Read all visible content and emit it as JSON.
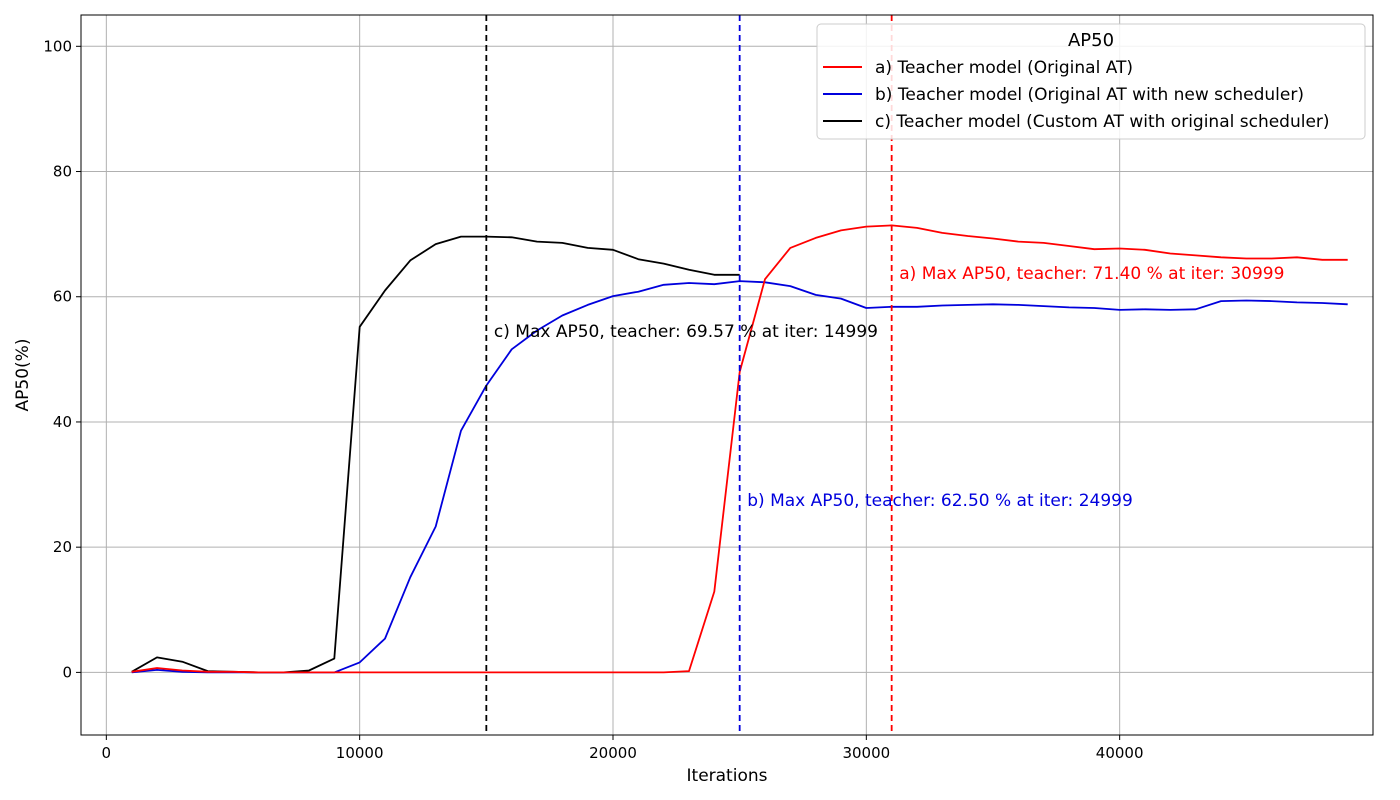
{
  "chart_data": {
    "type": "line",
    "xlabel": "Iterations",
    "ylabel": "AP50(%)",
    "xlim": [
      -1000,
      50000
    ],
    "ylim": [
      -10,
      105
    ],
    "xticks": [
      0,
      10000,
      20000,
      30000,
      40000
    ],
    "yticks": [
      0,
      20,
      40,
      60,
      80,
      100
    ],
    "grid": true,
    "legend": {
      "title": "AP50",
      "placement": "top-right"
    },
    "series": [
      {
        "name": "a) Teacher model (Original AT)",
        "color": "#ff0000",
        "x": [
          1000,
          2000,
          3000,
          4000,
          5000,
          6000,
          7000,
          8000,
          9000,
          10000,
          11000,
          12000,
          13000,
          14000,
          15000,
          16000,
          17000,
          18000,
          19000,
          20000,
          21000,
          22000,
          23000,
          24000,
          25000,
          26000,
          27000,
          28000,
          29000,
          30000,
          31000,
          32000,
          33000,
          34000,
          35000,
          36000,
          37000,
          38000,
          39000,
          40000,
          41000,
          42000,
          43000,
          44000,
          45000,
          46000,
          47000,
          48000,
          49000
        ],
        "y": [
          0.1,
          0.7,
          0.3,
          0.1,
          0.1,
          0.0,
          0.0,
          0.0,
          0.0,
          0.0,
          0.0,
          0.0,
          0.0,
          0.0,
          0.0,
          0.0,
          0.0,
          0.0,
          0.0,
          0.0,
          0.0,
          0.0,
          0.2,
          12.9,
          48.0,
          62.8,
          67.8,
          69.4,
          70.6,
          71.2,
          71.4,
          71.0,
          70.2,
          69.7,
          69.3,
          68.8,
          68.6,
          68.1,
          67.6,
          67.7,
          67.5,
          66.9,
          66.6,
          66.3,
          66.1,
          66.1,
          66.3,
          65.9,
          65.9
        ]
      },
      {
        "name": "b) Teacher model (Original AT with new scheduler)",
        "color": "#0000dd",
        "x": [
          1000,
          2000,
          3000,
          4000,
          5000,
          6000,
          7000,
          8000,
          9000,
          10000,
          11000,
          12000,
          13000,
          14000,
          15000,
          16000,
          17000,
          18000,
          19000,
          20000,
          21000,
          22000,
          23000,
          24000,
          25000,
          26000,
          27000,
          28000,
          29000,
          30000,
          31000,
          32000,
          33000,
          34000,
          35000,
          36000,
          37000,
          38000,
          39000,
          40000,
          41000,
          42000,
          43000,
          44000,
          45000,
          46000,
          47000,
          48000,
          49000
        ],
        "y": [
          0.0,
          0.4,
          0.1,
          0.0,
          0.0,
          0.0,
          0.0,
          0.0,
          0.0,
          1.6,
          5.4,
          15.2,
          23.3,
          38.6,
          45.8,
          51.6,
          54.6,
          57.0,
          58.7,
          60.1,
          60.8,
          61.9,
          62.2,
          62.0,
          62.5,
          62.3,
          61.7,
          60.3,
          59.7,
          58.2,
          58.4,
          58.4,
          58.6,
          58.7,
          58.8,
          58.7,
          58.5,
          58.3,
          58.2,
          57.9,
          58.0,
          57.9,
          58.0,
          59.3,
          59.4,
          59.3,
          59.1,
          59.0,
          58.8
        ]
      },
      {
        "name": "c) Teacher model (Custom AT with original scheduler)",
        "color": "#000000",
        "x": [
          1000,
          2000,
          3000,
          4000,
          5000,
          6000,
          7000,
          8000,
          9000,
          10000,
          11000,
          12000,
          13000,
          14000,
          15000,
          16000,
          17000,
          18000,
          19000,
          20000,
          21000,
          22000,
          23000,
          24000,
          25000
        ],
        "y": [
          0.1,
          2.4,
          1.7,
          0.2,
          0.1,
          0.0,
          0.0,
          0.3,
          2.2,
          55.2,
          61.0,
          65.8,
          68.4,
          69.6,
          69.6,
          69.5,
          68.8,
          68.6,
          67.8,
          67.5,
          66.0,
          65.3,
          64.3,
          63.5,
          63.5
        ]
      }
    ],
    "vlines": [
      {
        "x": 15000,
        "color": "#000000",
        "style": "dashed"
      },
      {
        "x": 25000,
        "color": "#0000dd",
        "style": "dashed"
      },
      {
        "x": 31000,
        "color": "#ff0000",
        "style": "dashed"
      }
    ],
    "annotations": [
      {
        "text": "c) Max AP50, teacher: 69.57 % at iter: 14999",
        "x": 15300,
        "y": 53.6,
        "color": "#000000"
      },
      {
        "text": "b) Max AP50, teacher: 62.50 % at iter: 24999",
        "x": 25300,
        "y": 26.6,
        "color": "#0000dd"
      },
      {
        "text": "a) Max AP50, teacher: 71.40 % at iter: 30999",
        "x": 31300,
        "y": 62.8,
        "color": "#ff0000"
      }
    ]
  }
}
